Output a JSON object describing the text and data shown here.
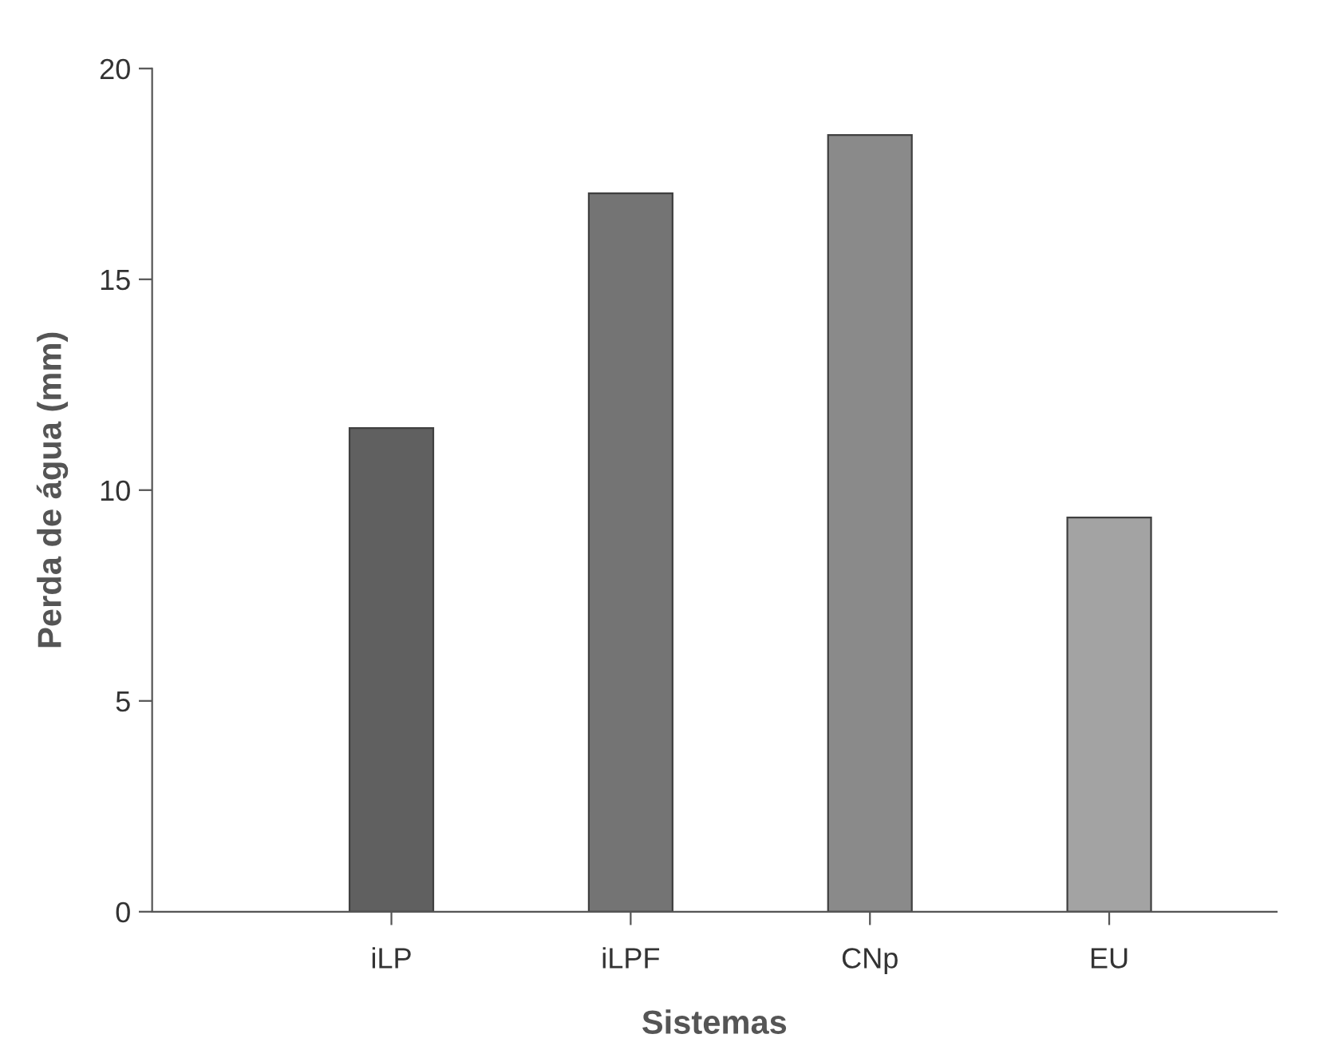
{
  "chart_data": {
    "type": "bar",
    "xlabel": "Sistemas",
    "ylabel": "Perda de água (mm)",
    "categories": [
      "iLP",
      "iLPF",
      "CNp",
      "EU"
    ],
    "values": [
      11.47,
      17.04,
      18.42,
      9.35
    ],
    "colors": [
      "#606060",
      "#747474",
      "#8a8a8a",
      "#a3a3a3"
    ],
    "ylim": [
      0,
      20
    ],
    "yticks": [
      0,
      5,
      10,
      15,
      20
    ],
    "grid": false,
    "legend": false
  }
}
